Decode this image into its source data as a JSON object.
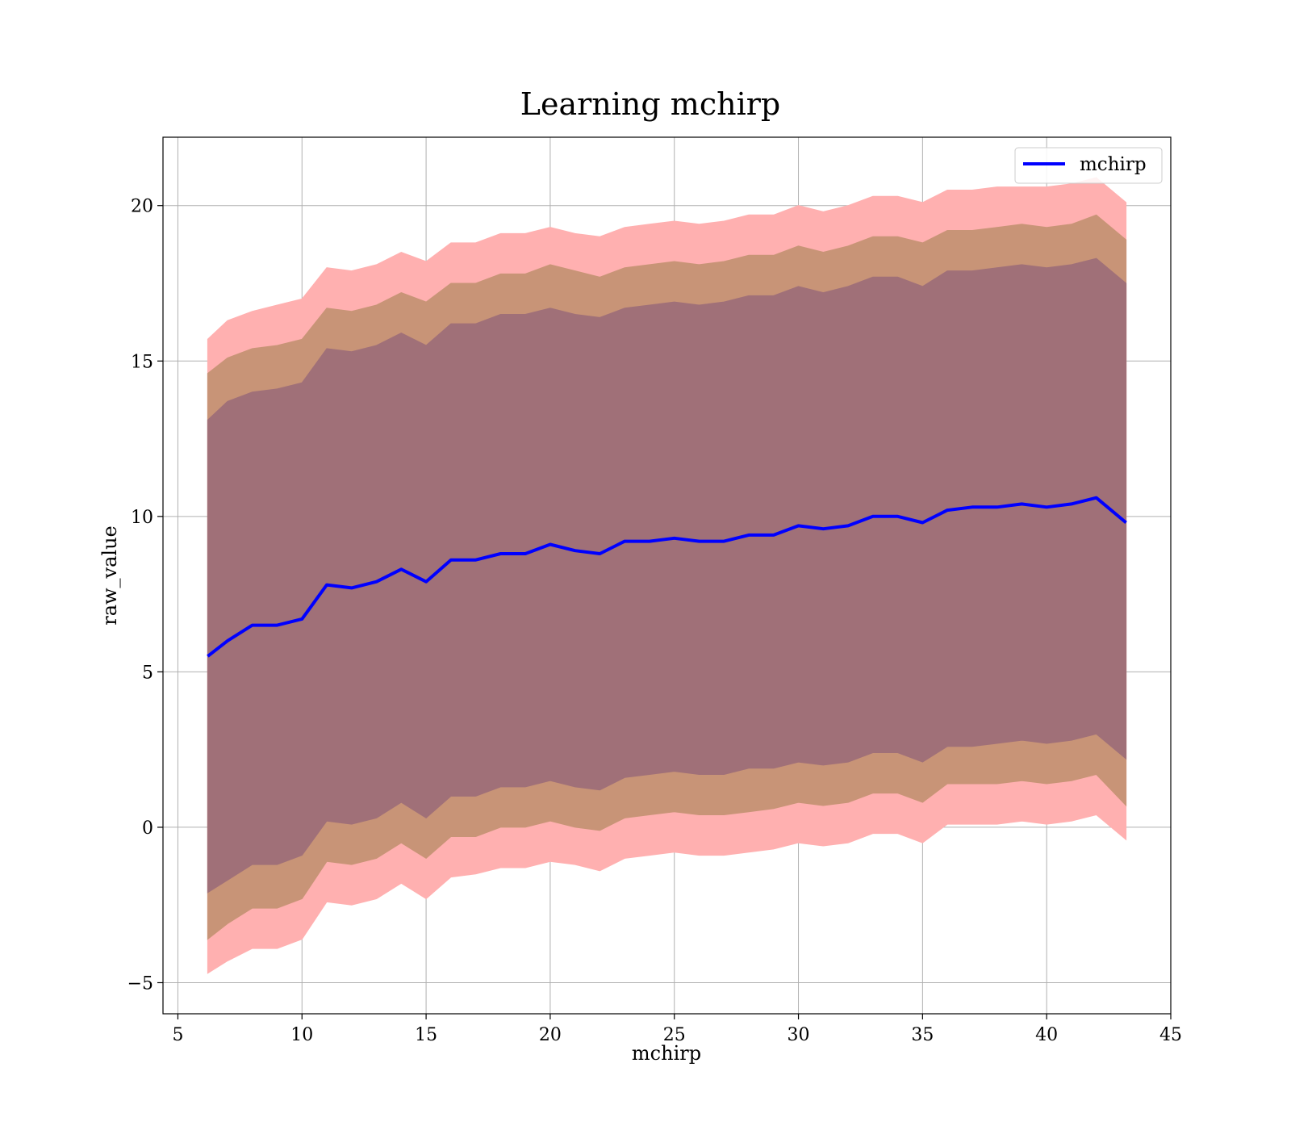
{
  "chart_data": {
    "type": "line",
    "title": "Learning mchirp",
    "xlabel": "mchirp",
    "ylabel": "raw_value",
    "xlim": [
      4.4,
      45
    ],
    "ylim": [
      -6,
      22.2
    ],
    "xticks": [
      5,
      10,
      15,
      20,
      25,
      30,
      35,
      40,
      45
    ],
    "yticks": [
      -5,
      0,
      5,
      10,
      15,
      20
    ],
    "ytick_labels": [
      "−5",
      "0",
      "5",
      "10",
      "15",
      "20"
    ],
    "grid": true,
    "legend": {
      "placement": "top-right",
      "entries": [
        "mchirp"
      ]
    },
    "x": [
      6.2,
      7.0,
      8.0,
      9.0,
      10.0,
      11.0,
      12.0,
      13.0,
      14.0,
      15.0,
      16.0,
      17.0,
      18.0,
      19.0,
      20.0,
      21.0,
      22.0,
      23.0,
      24.0,
      25.0,
      26.0,
      27.0,
      28.0,
      29.0,
      30.0,
      31.0,
      32.0,
      33.0,
      34.0,
      35.0,
      36.0,
      37.0,
      38.0,
      39.0,
      40.0,
      41.0,
      42.0,
      43.2
    ],
    "series": [
      {
        "name": "mchirp",
        "color": "#0000ff",
        "values": [
          5.5,
          6.0,
          6.5,
          6.5,
          6.7,
          7.8,
          7.7,
          7.9,
          8.3,
          7.9,
          8.6,
          8.6,
          8.8,
          8.8,
          9.1,
          8.9,
          8.8,
          9.2,
          9.2,
          9.3,
          9.2,
          9.2,
          9.4,
          9.4,
          9.7,
          9.6,
          9.7,
          10.0,
          10.0,
          9.8,
          10.2,
          10.3,
          10.3,
          10.4,
          10.3,
          10.4,
          10.6,
          9.8
        ],
        "band_3sigma_upper": [
          15.7,
          16.3,
          16.6,
          16.8,
          17.0,
          18.0,
          17.9,
          18.1,
          18.5,
          18.2,
          18.8,
          18.8,
          19.1,
          19.1,
          19.3,
          19.1,
          19.0,
          19.3,
          19.4,
          19.5,
          19.4,
          19.5,
          19.7,
          19.7,
          20.0,
          19.8,
          20.0,
          20.3,
          20.3,
          20.1,
          20.5,
          20.5,
          20.6,
          20.6,
          20.6,
          20.7,
          20.9,
          20.1
        ],
        "band_3sigma_lower": [
          -4.7,
          -4.3,
          -3.9,
          -3.9,
          -3.6,
          -2.4,
          -2.5,
          -2.3,
          -1.8,
          -2.3,
          -1.6,
          -1.5,
          -1.3,
          -1.3,
          -1.1,
          -1.2,
          -1.4,
          -1.0,
          -0.9,
          -0.8,
          -0.9,
          -0.9,
          -0.8,
          -0.7,
          -0.5,
          -0.6,
          -0.5,
          -0.2,
          -0.2,
          -0.5,
          0.1,
          0.1,
          0.1,
          0.2,
          0.1,
          0.2,
          0.4,
          -0.4
        ],
        "band_2sigma_upper": [
          14.6,
          15.1,
          15.4,
          15.5,
          15.7,
          16.7,
          16.6,
          16.8,
          17.2,
          16.9,
          17.5,
          17.5,
          17.8,
          17.8,
          18.1,
          17.9,
          17.7,
          18.0,
          18.1,
          18.2,
          18.1,
          18.2,
          18.4,
          18.4,
          18.7,
          18.5,
          18.7,
          19.0,
          19.0,
          18.8,
          19.2,
          19.2,
          19.3,
          19.4,
          19.3,
          19.4,
          19.7,
          18.9
        ],
        "band_2sigma_lower": [
          -3.6,
          -3.1,
          -2.6,
          -2.6,
          -2.3,
          -1.1,
          -1.2,
          -1.0,
          -0.5,
          -1.0,
          -0.3,
          -0.3,
          0.0,
          0.0,
          0.2,
          0.0,
          -0.1,
          0.3,
          0.4,
          0.5,
          0.4,
          0.4,
          0.5,
          0.6,
          0.8,
          0.7,
          0.8,
          1.1,
          1.1,
          0.8,
          1.4,
          1.4,
          1.4,
          1.5,
          1.4,
          1.5,
          1.7,
          0.7
        ],
        "band_1sigma_upper": [
          13.1,
          13.7,
          14.0,
          14.1,
          14.3,
          15.4,
          15.3,
          15.5,
          15.9,
          15.5,
          16.2,
          16.2,
          16.5,
          16.5,
          16.7,
          16.5,
          16.4,
          16.7,
          16.8,
          16.9,
          16.8,
          16.9,
          17.1,
          17.1,
          17.4,
          17.2,
          17.4,
          17.7,
          17.7,
          17.4,
          17.9,
          17.9,
          18.0,
          18.1,
          18.0,
          18.1,
          18.3,
          17.5
        ],
        "band_1sigma_lower": [
          -2.1,
          -1.7,
          -1.2,
          -1.2,
          -0.9,
          0.2,
          0.1,
          0.3,
          0.8,
          0.3,
          1.0,
          1.0,
          1.3,
          1.3,
          1.5,
          1.3,
          1.2,
          1.6,
          1.7,
          1.8,
          1.7,
          1.7,
          1.9,
          1.9,
          2.1,
          2.0,
          2.1,
          2.4,
          2.4,
          2.1,
          2.6,
          2.6,
          2.7,
          2.8,
          2.7,
          2.8,
          3.0,
          2.2
        ]
      }
    ],
    "band_colors": {
      "outer": "#ffb0b0",
      "middle": "#c89477",
      "inner": "#a07078"
    }
  }
}
